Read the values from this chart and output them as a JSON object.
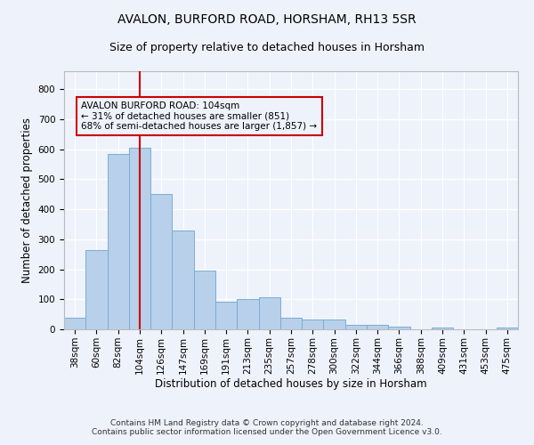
{
  "title": "AVALON, BURFORD ROAD, HORSHAM, RH13 5SR",
  "subtitle": "Size of property relative to detached houses in Horsham",
  "xlabel": "Distribution of detached houses by size in Horsham",
  "ylabel": "Number of detached properties",
  "footer_line1": "Contains HM Land Registry data © Crown copyright and database right 2024.",
  "footer_line2": "Contains public sector information licensed under the Open Government Licence v3.0.",
  "categories": [
    "38sqm",
    "60sqm",
    "82sqm",
    "104sqm",
    "126sqm",
    "147sqm",
    "169sqm",
    "191sqm",
    "213sqm",
    "235sqm",
    "257sqm",
    "278sqm",
    "300sqm",
    "322sqm",
    "344sqm",
    "366sqm",
    "388sqm",
    "409sqm",
    "431sqm",
    "453sqm",
    "475sqm"
  ],
  "values": [
    38,
    265,
    585,
    605,
    452,
    330,
    197,
    91,
    102,
    106,
    38,
    33,
    33,
    15,
    15,
    10,
    0,
    7,
    0,
    0,
    7
  ],
  "bar_color": "#b8d0ea",
  "bar_edge_color": "#7aadd4",
  "vline_x_index": 3,
  "vline_color": "#cc0000",
  "annotation_text": "AVALON BURFORD ROAD: 104sqm\n← 31% of detached houses are smaller (851)\n68% of semi-detached houses are larger (1,857) →",
  "annotation_box_color": "#cc0000",
  "ylim": [
    0,
    860
  ],
  "yticks": [
    0,
    100,
    200,
    300,
    400,
    500,
    600,
    700,
    800
  ],
  "background_color": "#eef2fb",
  "grid_color": "#ffffff",
  "title_fontsize": 10,
  "subtitle_fontsize": 9,
  "axis_label_fontsize": 8.5,
  "tick_fontsize": 7.5,
  "annotation_fontsize": 7.5,
  "footer_fontsize": 6.5
}
